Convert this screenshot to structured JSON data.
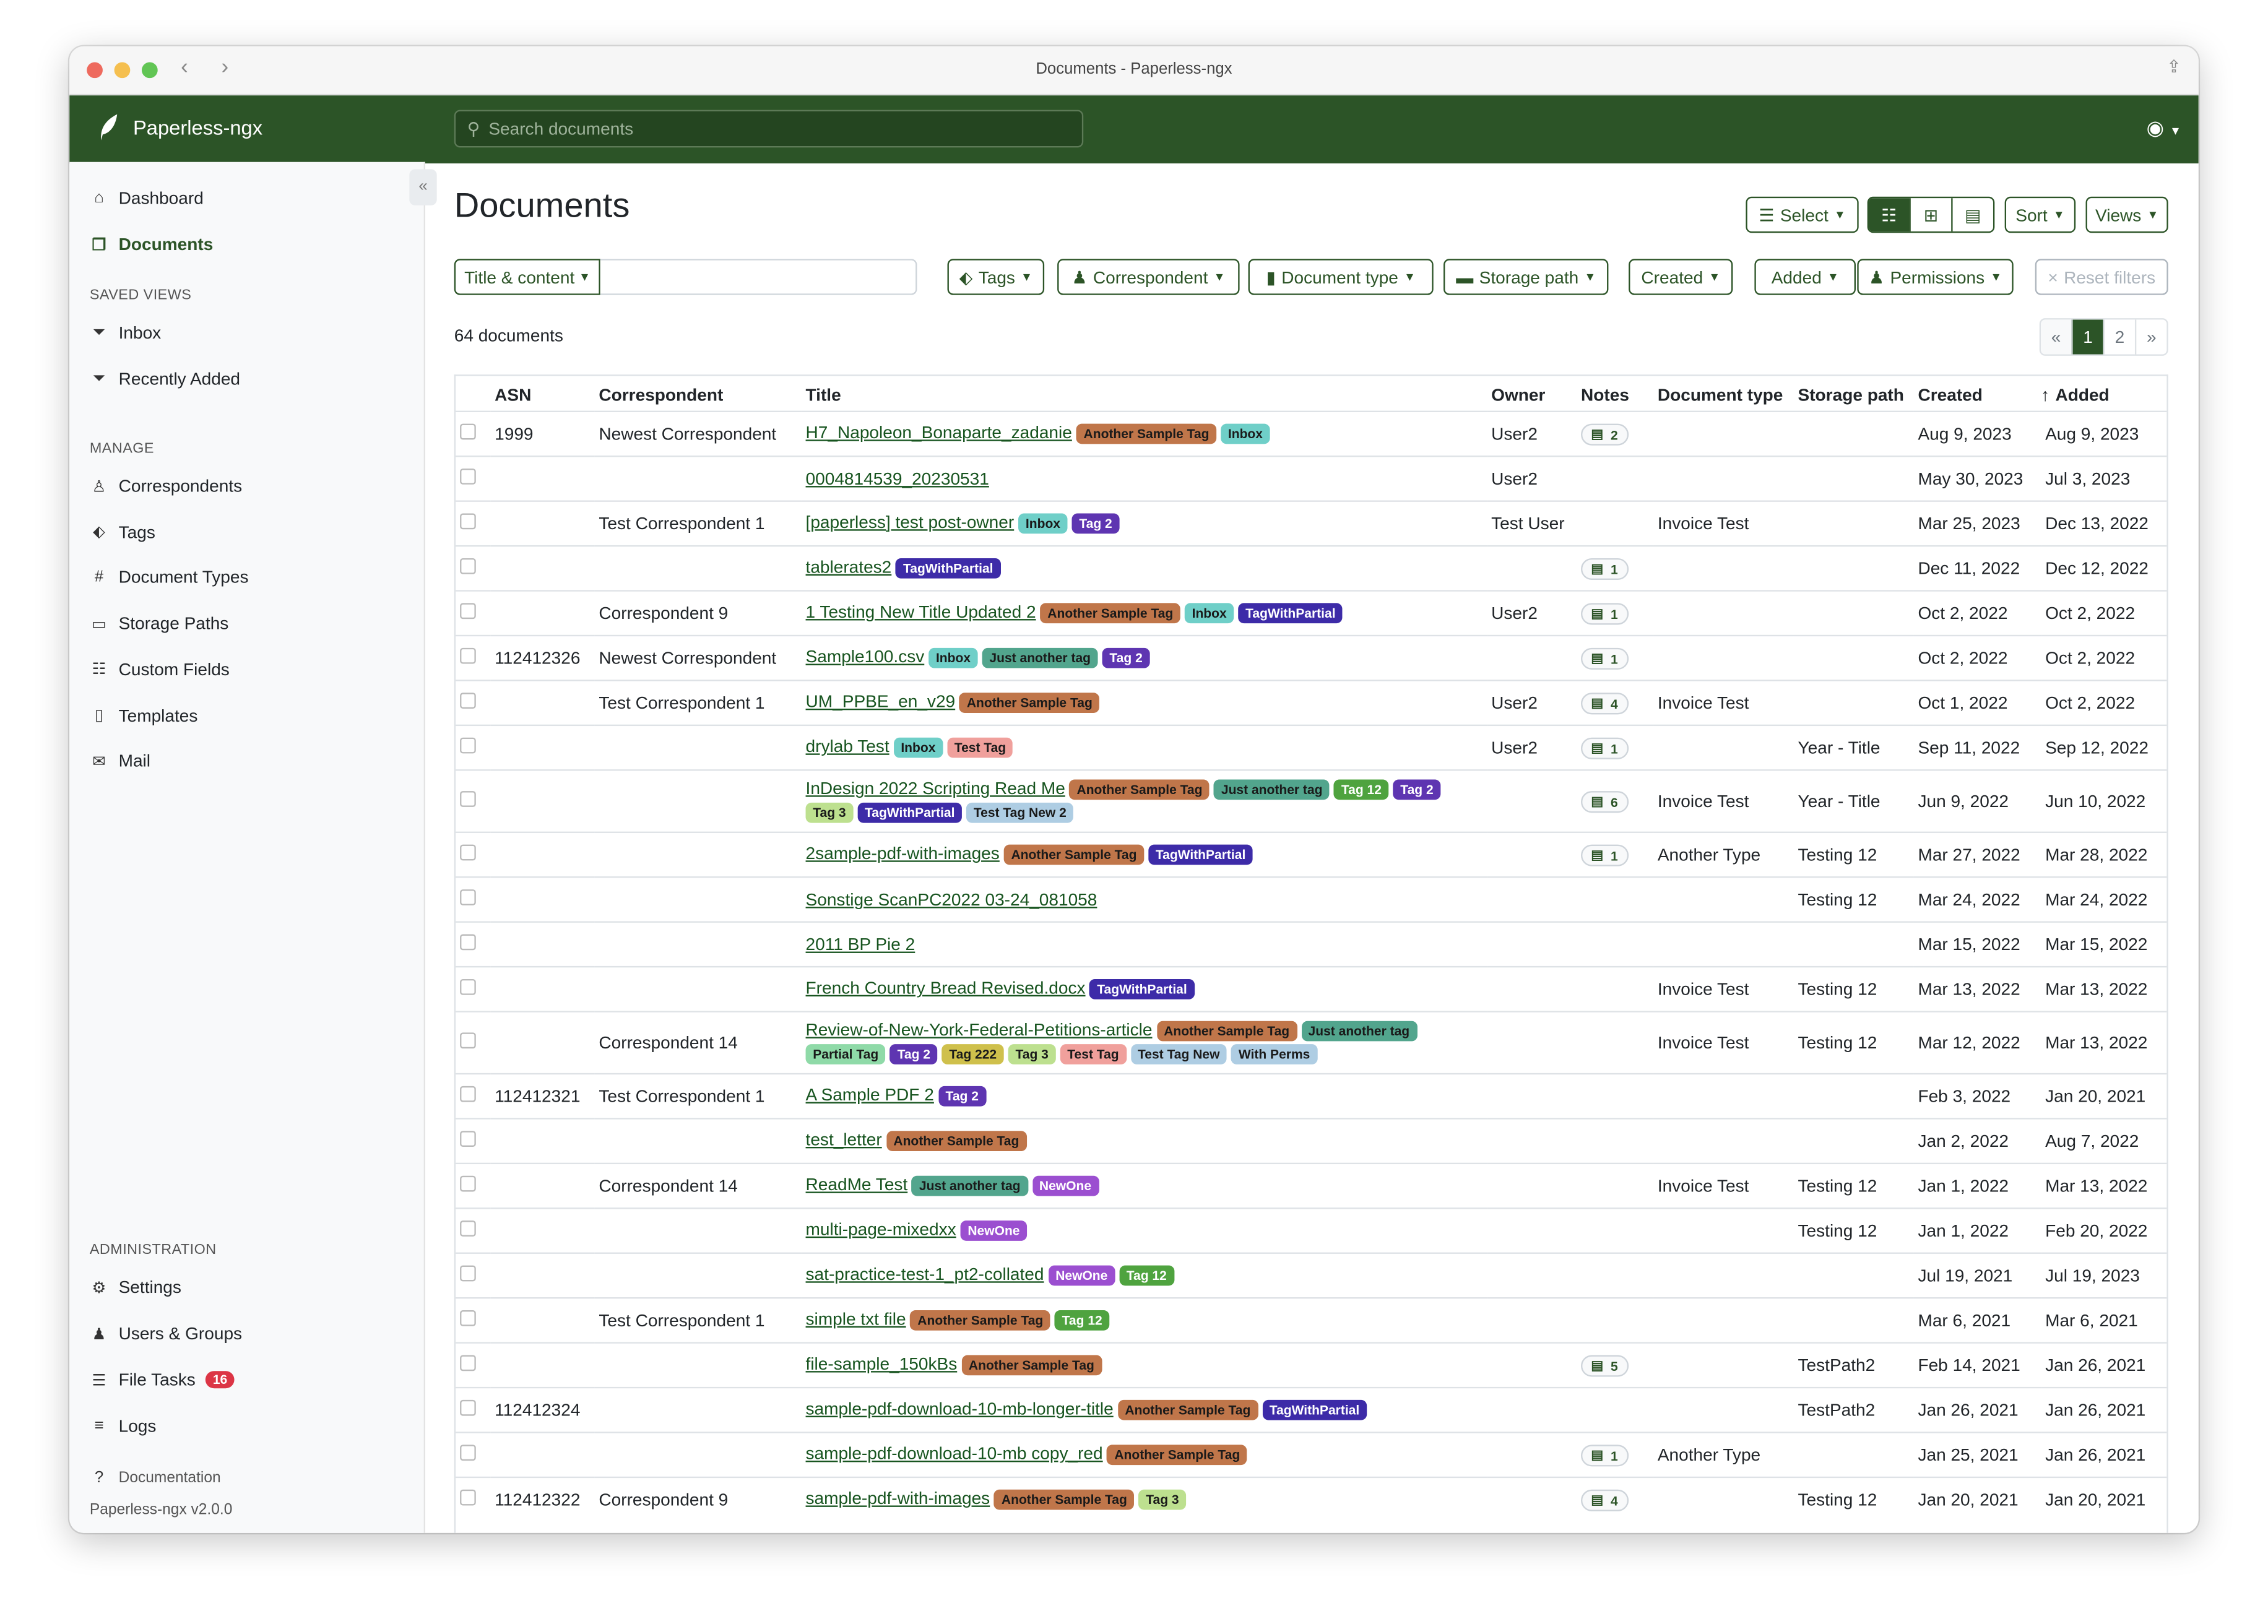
{
  "window": {
    "title": "Documents - Paperless-ngx"
  },
  "navbar": {
    "brand": "Paperless-ngx",
    "search_placeholder": "Search documents",
    "accent": "#2c5427"
  },
  "sidebar": {
    "top": [
      {
        "label": "Dashboard",
        "icon": "house-icon"
      },
      {
        "label": "Documents",
        "icon": "files-icon",
        "active": true
      }
    ],
    "saved_views_heading": "SAVED VIEWS",
    "saved_views": [
      {
        "label": "Inbox",
        "icon": "funnel-icon"
      },
      {
        "label": "Recently Added",
        "icon": "funnel-icon"
      }
    ],
    "manage_heading": "MANAGE",
    "manage": [
      {
        "label": "Correspondents",
        "icon": "person-icon"
      },
      {
        "label": "Tags",
        "icon": "tags-icon"
      },
      {
        "label": "Document Types",
        "icon": "hash-icon"
      },
      {
        "label": "Storage Paths",
        "icon": "folder-icon"
      },
      {
        "label": "Custom Fields",
        "icon": "ui-radios-icon"
      },
      {
        "label": "Templates",
        "icon": "file-text-icon"
      },
      {
        "label": "Mail",
        "icon": "envelope-icon"
      }
    ],
    "admin_heading": "ADMINISTRATION",
    "admin": [
      {
        "label": "Settings",
        "icon": "gear-icon"
      },
      {
        "label": "Users & Groups",
        "icon": "people-icon"
      },
      {
        "label": "File Tasks",
        "icon": "list-task-icon",
        "badge": "16"
      },
      {
        "label": "Logs",
        "icon": "text-left-icon"
      }
    ],
    "documentation": "Documentation",
    "version": "Paperless-ngx v2.0.0"
  },
  "page": {
    "title": "Documents",
    "select_label": "Select",
    "sort_label": "Sort",
    "views_label": "Views",
    "filters": {
      "text_mode": "Title & content",
      "text_value": "",
      "tags": "Tags",
      "correspondent": "Correspondent",
      "document_type": "Document type",
      "storage_path": "Storage path",
      "created": "Created",
      "added": "Added",
      "permissions": "Permissions",
      "reset": "Reset filters"
    },
    "count": "64 documents",
    "pagination": {
      "prev": "«",
      "pages": [
        "1",
        "2"
      ],
      "current": "1",
      "next": "»"
    }
  },
  "tag_colors": {
    "Another Sample Tag": {
      "bg": "#c0764a",
      "fg": "#1a1a1a"
    },
    "Inbox": {
      "bg": "#6fcfc8",
      "fg": "#1a1a1a"
    },
    "Tag 2": {
      "bg": "#5e35b1",
      "fg": "#ffffff"
    },
    "TagWithPartial": {
      "bg": "#3d2ba8",
      "fg": "#ffffff"
    },
    "Just another tag": {
      "bg": "#52a58d",
      "fg": "#1a1a1a"
    },
    "Test Tag": {
      "bg": "#f0a09c",
      "fg": "#1a1a1a"
    },
    "Tag 12": {
      "bg": "#4fa33f",
      "fg": "#ffffff"
    },
    "Tag 3": {
      "bg": "#bde08f",
      "fg": "#1a1a1a"
    },
    "Test Tag New 2": {
      "bg": "#aecde3",
      "fg": "#1a1a1a"
    },
    "Partial Tag": {
      "bg": "#8fdaa8",
      "fg": "#1a1a1a"
    },
    "Tag 222": {
      "bg": "#cfc04c",
      "fg": "#1a1a1a"
    },
    "Test Tag New": {
      "bg": "#aecde3",
      "fg": "#1a1a1a"
    },
    "With Perms": {
      "bg": "#aecde3",
      "fg": "#1a1a1a"
    },
    "NewOne": {
      "bg": "#9b4fd0",
      "fg": "#ffffff"
    }
  },
  "table": {
    "columns": [
      "ASN",
      "Correspondent",
      "Title",
      "Owner",
      "Notes",
      "Document type",
      "Storage path",
      "Created",
      "Added"
    ],
    "sort_indicator": "↑",
    "rows": [
      {
        "asn": "1999",
        "correspondent": "Newest Correspondent",
        "title": "H7_Napoleon_Bonaparte_zadanie",
        "tags": [
          "Another Sample Tag",
          "Inbox"
        ],
        "owner": "User2",
        "notes": "2",
        "doctype": "",
        "storage": "",
        "created": "Aug 9, 2023",
        "added": "Aug 9, 2023"
      },
      {
        "asn": "",
        "correspondent": "",
        "title": "0004814539_20230531",
        "tags": [],
        "owner": "User2",
        "notes": "",
        "doctype": "",
        "storage": "",
        "created": "May 30, 2023",
        "added": "Jul 3, 2023"
      },
      {
        "asn": "",
        "correspondent": "Test Correspondent 1",
        "title": "[paperless] test post-owner",
        "tags": [
          "Inbox",
          "Tag 2"
        ],
        "owner": "Test User",
        "notes": "",
        "doctype": "Invoice Test",
        "storage": "",
        "created": "Mar 25, 2023",
        "added": "Dec 13, 2022"
      },
      {
        "asn": "",
        "correspondent": "",
        "title": "tablerates2",
        "tags": [
          "TagWithPartial"
        ],
        "owner": "",
        "notes": "1",
        "doctype": "",
        "storage": "",
        "created": "Dec 11, 2022",
        "added": "Dec 12, 2022"
      },
      {
        "asn": "",
        "correspondent": "Correspondent 9",
        "title": "1 Testing New Title Updated 2",
        "tags": [
          "Another Sample Tag",
          "Inbox",
          "TagWithPartial"
        ],
        "owner": "User2",
        "notes": "1",
        "doctype": "",
        "storage": "",
        "created": "Oct 2, 2022",
        "added": "Oct 2, 2022"
      },
      {
        "asn": "112412326",
        "correspondent": "Newest Correspondent",
        "title": "Sample100.csv",
        "tags": [
          "Inbox",
          "Just another tag",
          "Tag 2"
        ],
        "owner": "",
        "notes": "1",
        "doctype": "",
        "storage": "",
        "created": "Oct 2, 2022",
        "added": "Oct 2, 2022"
      },
      {
        "asn": "",
        "correspondent": "Test Correspondent 1",
        "title": "UM_PPBE_en_v29",
        "tags": [
          "Another Sample Tag"
        ],
        "owner": "User2",
        "notes": "4",
        "doctype": "Invoice Test",
        "storage": "",
        "created": "Oct 1, 2022",
        "added": "Oct 2, 2022"
      },
      {
        "asn": "",
        "correspondent": "",
        "title": "drylab Test",
        "tags": [
          "Inbox",
          "Test Tag"
        ],
        "owner": "User2",
        "notes": "1",
        "doctype": "",
        "storage": "Year - Title",
        "created": "Sep 11, 2022",
        "added": "Sep 12, 2022"
      },
      {
        "asn": "",
        "correspondent": "",
        "title": "InDesign 2022 Scripting Read Me",
        "tags": [
          "Another Sample Tag",
          "Just another tag",
          "Tag 12",
          "Tag 2",
          "Tag 3",
          "TagWithPartial",
          "Test Tag New 2"
        ],
        "owner": "",
        "notes": "6",
        "doctype": "Invoice Test",
        "storage": "Year - Title",
        "created": "Jun 9, 2022",
        "added": "Jun 10, 2022"
      },
      {
        "asn": "",
        "correspondent": "",
        "title": "2sample-pdf-with-images",
        "tags": [
          "Another Sample Tag",
          "TagWithPartial"
        ],
        "owner": "",
        "notes": "1",
        "doctype": "Another Type",
        "storage": "Testing 12",
        "created": "Mar 27, 2022",
        "added": "Mar 28, 2022"
      },
      {
        "asn": "",
        "correspondent": "",
        "title": "Sonstige ScanPC2022 03-24_081058",
        "tags": [],
        "owner": "",
        "notes": "",
        "doctype": "",
        "storage": "Testing 12",
        "created": "Mar 24, 2022",
        "added": "Mar 24, 2022"
      },
      {
        "asn": "",
        "correspondent": "",
        "title": "2011 BP Pie 2",
        "tags": [],
        "owner": "",
        "notes": "",
        "doctype": "",
        "storage": "",
        "created": "Mar 15, 2022",
        "added": "Mar 15, 2022"
      },
      {
        "asn": "",
        "correspondent": "",
        "title": "French Country Bread Revised.docx",
        "tags": [
          "TagWithPartial"
        ],
        "owner": "",
        "notes": "",
        "doctype": "Invoice Test",
        "storage": "Testing 12",
        "created": "Mar 13, 2022",
        "added": "Mar 13, 2022"
      },
      {
        "asn": "",
        "correspondent": "Correspondent 14",
        "title": "Review-of-New-York-Federal-Petitions-article",
        "tags": [
          "Another Sample Tag",
          "Just another tag",
          "Partial Tag",
          "Tag 2",
          "Tag 222",
          "Tag 3",
          "Test Tag",
          "Test Tag New",
          "With Perms"
        ],
        "owner": "",
        "notes": "",
        "doctype": "Invoice Test",
        "storage": "Testing 12",
        "created": "Mar 12, 2022",
        "added": "Mar 13, 2022"
      },
      {
        "asn": "112412321",
        "correspondent": "Test Correspondent 1",
        "title": "A Sample PDF 2",
        "tags": [
          "Tag 2"
        ],
        "owner": "",
        "notes": "",
        "doctype": "",
        "storage": "",
        "created": "Feb 3, 2022",
        "added": "Jan 20, 2021"
      },
      {
        "asn": "",
        "correspondent": "",
        "title": "test_letter",
        "tags": [
          "Another Sample Tag"
        ],
        "owner": "",
        "notes": "",
        "doctype": "",
        "storage": "",
        "created": "Jan 2, 2022",
        "added": "Aug 7, 2022"
      },
      {
        "asn": "",
        "correspondent": "Correspondent 14",
        "title": "ReadMe Test",
        "tags": [
          "Just another tag",
          "NewOne"
        ],
        "owner": "",
        "notes": "",
        "doctype": "Invoice Test",
        "storage": "Testing 12",
        "created": "Jan 1, 2022",
        "added": "Mar 13, 2022"
      },
      {
        "asn": "",
        "correspondent": "",
        "title": "multi-page-mixedxx",
        "tags": [
          "NewOne"
        ],
        "owner": "",
        "notes": "",
        "doctype": "",
        "storage": "Testing 12",
        "created": "Jan 1, 2022",
        "added": "Feb 20, 2022"
      },
      {
        "asn": "",
        "correspondent": "",
        "title": "sat-practice-test-1_pt2-collated",
        "tags": [
          "NewOne",
          "Tag 12"
        ],
        "owner": "",
        "notes": "",
        "doctype": "",
        "storage": "",
        "created": "Jul 19, 2021",
        "added": "Jul 19, 2023"
      },
      {
        "asn": "",
        "correspondent": "Test Correspondent 1",
        "title": "simple txt file",
        "tags": [
          "Another Sample Tag",
          "Tag 12"
        ],
        "owner": "",
        "notes": "",
        "doctype": "",
        "storage": "",
        "created": "Mar 6, 2021",
        "added": "Mar 6, 2021"
      },
      {
        "asn": "",
        "correspondent": "",
        "title": "file-sample_150kBs",
        "tags": [
          "Another Sample Tag"
        ],
        "owner": "",
        "notes": "5",
        "doctype": "",
        "storage": "TestPath2",
        "created": "Feb 14, 2021",
        "added": "Jan 26, 2021"
      },
      {
        "asn": "112412324",
        "correspondent": "",
        "title": "sample-pdf-download-10-mb-longer-title",
        "tags": [
          "Another Sample Tag",
          "TagWithPartial"
        ],
        "owner": "",
        "notes": "",
        "doctype": "",
        "storage": "TestPath2",
        "created": "Jan 26, 2021",
        "added": "Jan 26, 2021"
      },
      {
        "asn": "",
        "correspondent": "",
        "title": "sample-pdf-download-10-mb copy_red",
        "tags": [
          "Another Sample Tag"
        ],
        "owner": "",
        "notes": "1",
        "doctype": "Another Type",
        "storage": "",
        "created": "Jan 25, 2021",
        "added": "Jan 26, 2021"
      },
      {
        "asn": "112412322",
        "correspondent": "Correspondent 9",
        "title": "sample-pdf-with-images",
        "tags": [
          "Another Sample Tag",
          "Tag 3"
        ],
        "owner": "",
        "notes": "4",
        "doctype": "",
        "storage": "Testing 12",
        "created": "Jan 20, 2021",
        "added": "Jan 20, 2021"
      }
    ]
  }
}
